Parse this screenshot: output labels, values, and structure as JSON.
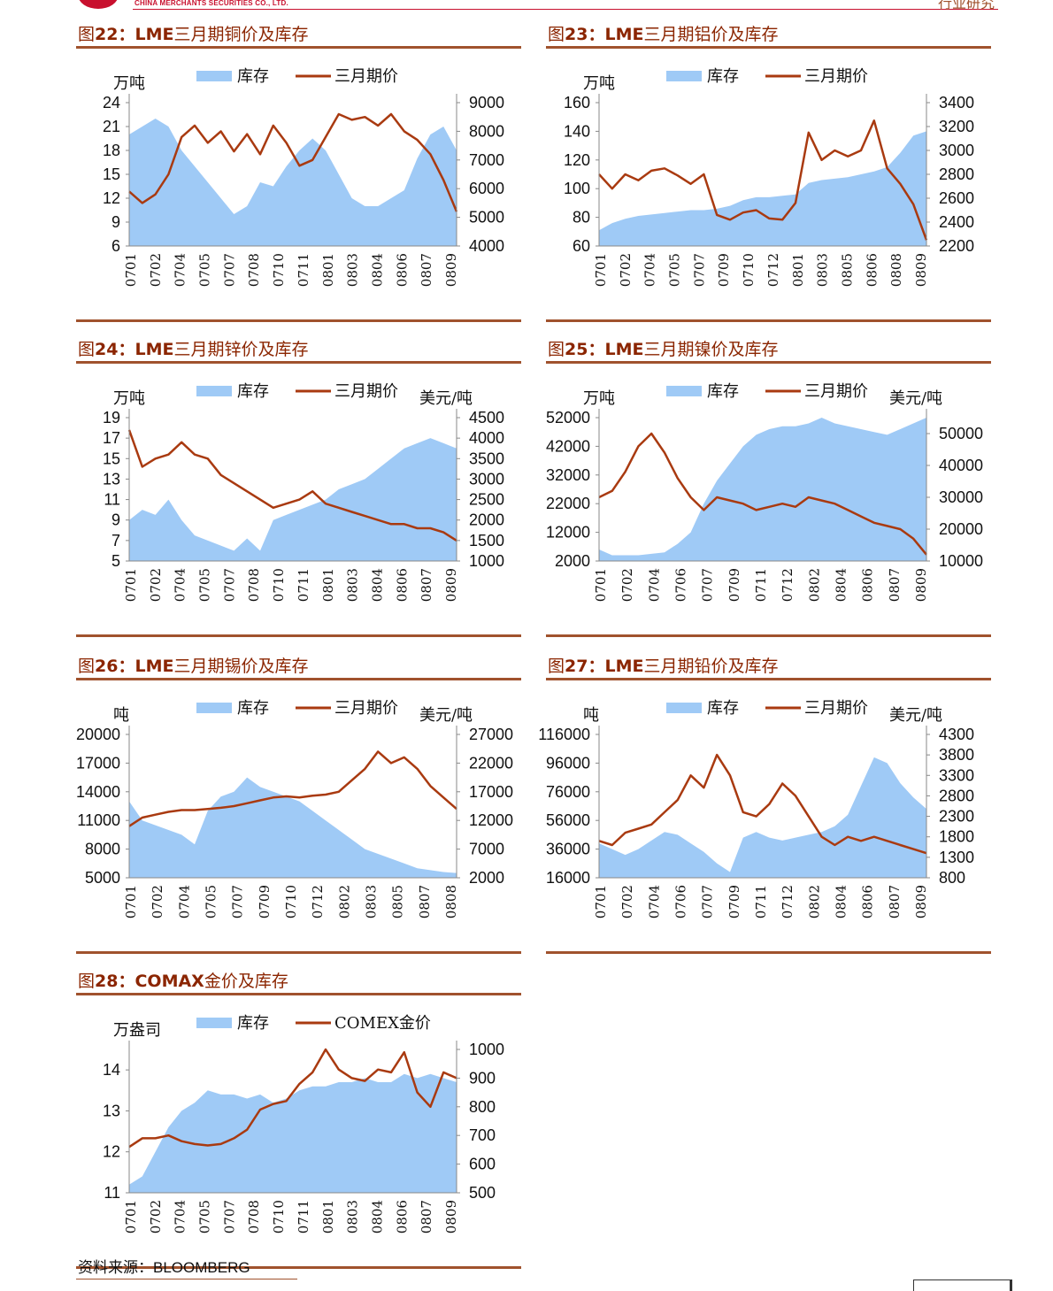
{
  "header": {
    "company": "CHINA MERCHANTS SECURITIES CO., LTD.",
    "section": "行业研究"
  },
  "chart_data": [
    {
      "id": "fig22",
      "type": "area+line",
      "fig_label": "图22：",
      "title_en": "LME",
      "title_cn": "三月期铜价及库存",
      "left_unit": "万吨",
      "right_unit": "",
      "legend": {
        "area": "库存",
        "line": "三月期价"
      },
      "yleft": {
        "min": 6,
        "max": 24,
        "ticks": [
          6,
          9,
          12,
          15,
          18,
          21,
          24
        ]
      },
      "yright": {
        "min": 4000,
        "max": 9000,
        "ticks": [
          4000,
          5000,
          6000,
          7000,
          8000,
          9000
        ]
      },
      "x_ticks": [
        "0701",
        "0702",
        "0704",
        "0705",
        "0707",
        "0708",
        "0710",
        "0711",
        "0801",
        "0803",
        "0804",
        "0806",
        "0807",
        "0809"
      ],
      "series_area": {
        "name": "库存",
        "values": [
          20,
          21,
          22,
          21,
          18,
          16,
          14,
          12,
          10,
          11,
          14,
          13.5,
          16,
          18,
          19.5,
          18,
          15,
          12,
          11,
          11,
          12,
          13,
          17,
          20,
          21,
          18
        ]
      },
      "series_line": {
        "name": "三月期价",
        "values": [
          5900,
          5500,
          5800,
          6500,
          7800,
          8200,
          7600,
          8000,
          7300,
          7900,
          7200,
          8200,
          7600,
          6800,
          7000,
          7800,
          8600,
          8400,
          8500,
          8200,
          8600,
          8000,
          7700,
          7200,
          6300,
          5200
        ]
      },
      "colors": {
        "area": "#9fcaf6",
        "line": "#a93a10"
      }
    },
    {
      "id": "fig23",
      "type": "area+line",
      "fig_label": "图23：",
      "title_en": "LME",
      "title_cn": "三月期铝价及库存",
      "left_unit": "万吨",
      "right_unit": "",
      "legend": {
        "area": "库存",
        "line": "三月期价"
      },
      "yleft": {
        "min": 60,
        "max": 160,
        "ticks": [
          60,
          80,
          100,
          120,
          140,
          160
        ]
      },
      "yright": {
        "min": 2200,
        "max": 3400,
        "ticks": [
          2200,
          2400,
          2600,
          2800,
          3000,
          3200,
          3400
        ]
      },
      "x_ticks": [
        "0701",
        "0702",
        "0704",
        "0705",
        "0707",
        "0709",
        "0710",
        "0712",
        "0801",
        "0803",
        "0805",
        "0806",
        "0808",
        "0809"
      ],
      "series_area": {
        "name": "库存",
        "values": [
          71,
          76,
          79,
          81,
          82,
          83,
          84,
          85,
          85,
          86,
          88,
          92,
          94,
          94,
          95,
          96,
          104,
          106,
          107,
          108,
          110,
          112,
          115,
          125,
          137,
          140
        ]
      },
      "series_line": {
        "name": "三月期价",
        "values": [
          2800,
          2680,
          2800,
          2750,
          2830,
          2850,
          2790,
          2720,
          2800,
          2460,
          2420,
          2480,
          2500,
          2430,
          2420,
          2560,
          3150,
          2920,
          3000,
          2950,
          3000,
          3250,
          2850,
          2720,
          2550,
          2250
        ]
      },
      "colors": {
        "area": "#9fcaf6",
        "line": "#a93a10"
      }
    },
    {
      "id": "fig24",
      "type": "area+line",
      "fig_label": "图24：",
      "title_en": "LME",
      "title_cn": "三月期锌价及库存",
      "left_unit": "万吨",
      "right_unit": "美元/吨",
      "legend": {
        "area": "库存",
        "line": "三月期价"
      },
      "yleft": {
        "min": 5,
        "max": 19,
        "ticks": [
          5,
          7,
          9,
          11,
          13,
          15,
          17,
          19
        ]
      },
      "yright": {
        "min": 1000,
        "max": 4500,
        "ticks": [
          1000,
          1500,
          2000,
          2500,
          3000,
          3500,
          4000,
          4500
        ]
      },
      "x_ticks": [
        "0701",
        "0702",
        "0704",
        "0705",
        "0707",
        "0708",
        "0710",
        "0711",
        "0801",
        "0803",
        "0804",
        "0806",
        "0807",
        "0809"
      ],
      "series_area": {
        "name": "库存",
        "values": [
          9,
          10,
          9.5,
          11,
          9,
          7.5,
          7,
          6.5,
          6,
          7.2,
          6,
          9,
          9.5,
          10,
          10.5,
          11,
          12,
          12.5,
          13,
          14,
          15,
          16,
          16.5,
          17,
          16.5,
          16
        ]
      },
      "series_line": {
        "name": "三月期价",
        "values": [
          4200,
          3300,
          3500,
          3600,
          3900,
          3600,
          3500,
          3100,
          2900,
          2700,
          2500,
          2300,
          2400,
          2500,
          2700,
          2400,
          2300,
          2200,
          2100,
          2000,
          1900,
          1900,
          1800,
          1800,
          1700,
          1500
        ]
      },
      "colors": {
        "area": "#9fcaf6",
        "line": "#a93a10"
      }
    },
    {
      "id": "fig25",
      "type": "area+line",
      "fig_label": "图25：",
      "title_en": "LME",
      "title_cn": "三月期镍价及库存",
      "left_unit": "万吨",
      "right_unit": "美元/吨",
      "legend": {
        "area": "库存",
        "line": "三月期价"
      },
      "yleft": {
        "min": 2000,
        "max": 52000,
        "ticks": [
          2000,
          12000,
          22000,
          32000,
          42000,
          52000
        ]
      },
      "yright": {
        "min": 10000,
        "max": 55000,
        "ticks": [
          10000,
          20000,
          30000,
          40000,
          50000
        ]
      },
      "x_ticks": [
        "0701",
        "0702",
        "0704",
        "0706",
        "0707",
        "0709",
        "0711",
        "0712",
        "0802",
        "0804",
        "0806",
        "0807",
        "0809"
      ],
      "series_area": {
        "name": "库存",
        "values": [
          6000,
          4000,
          4000,
          4000,
          4500,
          5000,
          8000,
          12000,
          22000,
          30000,
          36000,
          42000,
          46000,
          48000,
          49000,
          49000,
          50000,
          52000,
          50000,
          49000,
          48000,
          47000,
          46000,
          48000,
          50000,
          54000
        ]
      },
      "series_line": {
        "name": "三月期价",
        "values": [
          30000,
          32000,
          38000,
          46000,
          50000,
          44000,
          36000,
          30000,
          26000,
          30000,
          29000,
          28000,
          26000,
          27000,
          28000,
          27000,
          30000,
          29000,
          28000,
          26000,
          24000,
          22000,
          21000,
          20000,
          17000,
          12000
        ]
      },
      "colors": {
        "area": "#9fcaf6",
        "line": "#a93a10"
      }
    },
    {
      "id": "fig26",
      "type": "area+line",
      "fig_label": "图26：",
      "title_en": "LME",
      "title_cn": "三月期锡价及库存",
      "left_unit": "吨",
      "right_unit": "美元/吨",
      "legend": {
        "area": "库存",
        "line": "三月期价"
      },
      "yleft": {
        "min": 5000,
        "max": 20000,
        "ticks": [
          5000,
          8000,
          11000,
          14000,
          17000,
          20000
        ]
      },
      "yright": {
        "min": 2000,
        "max": 27000,
        "ticks": [
          2000,
          7000,
          12000,
          17000,
          22000,
          27000
        ]
      },
      "x_ticks": [
        "0701",
        "0702",
        "0704",
        "0705",
        "0707",
        "0709",
        "0710",
        "0712",
        "0802",
        "0803",
        "0805",
        "0807",
        "0808"
      ],
      "series_area": {
        "name": "库存",
        "values": [
          13000,
          11000,
          10500,
          10000,
          9500,
          8500,
          12000,
          13500,
          14000,
          15500,
          14500,
          14000,
          13500,
          13000,
          12000,
          11000,
          10000,
          9000,
          8000,
          7500,
          7000,
          6500,
          6000,
          5800,
          5600,
          5500
        ]
      },
      "series_line": {
        "name": "三月期价",
        "values": [
          11000,
          12500,
          13000,
          13500,
          13800,
          13800,
          14000,
          14200,
          14500,
          15000,
          15500,
          16000,
          16200,
          16000,
          16300,
          16500,
          17000,
          19000,
          21000,
          24000,
          22000,
          23000,
          21000,
          18000,
          16000,
          14000
        ]
      },
      "colors": {
        "area": "#9fcaf6",
        "line": "#a93a10"
      }
    },
    {
      "id": "fig27",
      "type": "area+line",
      "fig_label": "图27：",
      "title_en": "LME",
      "title_cn": "三月期铅价及库存",
      "left_unit": "吨",
      "right_unit": "美元/吨",
      "legend": {
        "area": "库存",
        "line": "三月期价"
      },
      "yleft": {
        "min": 16000,
        "max": 116000,
        "ticks": [
          16000,
          36000,
          56000,
          76000,
          96000,
          116000
        ]
      },
      "yright": {
        "min": 800,
        "max": 4300,
        "ticks": [
          800,
          1300,
          1800,
          2300,
          2800,
          3300,
          3800,
          4300
        ]
      },
      "x_ticks": [
        "0701",
        "0702",
        "0704",
        "0706",
        "0707",
        "0709",
        "0711",
        "0712",
        "0802",
        "0804",
        "0806",
        "0807",
        "0809"
      ],
      "series_area": {
        "name": "库存",
        "values": [
          40000,
          36000,
          32000,
          36000,
          42000,
          48000,
          46000,
          40000,
          34000,
          26000,
          20000,
          44000,
          48000,
          44000,
          42000,
          44000,
          46000,
          48000,
          52000,
          60000,
          80000,
          100000,
          96000,
          82000,
          72000,
          64000
        ]
      },
      "series_line": {
        "name": "三月期价",
        "values": [
          1700,
          1600,
          1900,
          2000,
          2100,
          2400,
          2700,
          3300,
          3000,
          3800,
          3300,
          2400,
          2300,
          2600,
          3100,
          2800,
          2300,
          1800,
          1600,
          1800,
          1700,
          1800,
          1700,
          1600,
          1500,
          1400
        ]
      },
      "colors": {
        "area": "#9fcaf6",
        "line": "#a93a10"
      }
    },
    {
      "id": "fig28",
      "type": "area+line",
      "fig_label": "图28：",
      "title_en": "COMAX",
      "title_cn": "金价及库存",
      "left_unit": "万盎司",
      "right_unit": "",
      "legend": {
        "area": "库存",
        "line": "COMEX金价"
      },
      "yleft": {
        "min": 11,
        "max": 14.5,
        "ticks": [
          11,
          12,
          13,
          14
        ]
      },
      "yright": {
        "min": 500,
        "max": 1000,
        "ticks": [
          500,
          600,
          700,
          800,
          900,
          1000
        ]
      },
      "x_ticks": [
        "0701",
        "0702",
        "0704",
        "0705",
        "0707",
        "0708",
        "0710",
        "0711",
        "0801",
        "0803",
        "0804",
        "0806",
        "0807",
        "0809"
      ],
      "series_area": {
        "name": "库存",
        "values": [
          11.2,
          11.4,
          12,
          12.6,
          13,
          13.2,
          13.5,
          13.4,
          13.4,
          13.3,
          13.4,
          13.2,
          13.3,
          13.5,
          13.6,
          13.6,
          13.7,
          13.7,
          13.8,
          13.7,
          13.7,
          13.9,
          13.8,
          13.9,
          13.8,
          13.7
        ]
      },
      "series_line": {
        "name": "COMEX金价",
        "values": [
          660,
          690,
          690,
          700,
          680,
          670,
          665,
          670,
          690,
          720,
          790,
          810,
          820,
          880,
          920,
          1000,
          930,
          900,
          890,
          930,
          920,
          990,
          850,
          800,
          920,
          900
        ]
      },
      "colors": {
        "area": "#9fcaf6",
        "line": "#a93a10"
      }
    }
  ],
  "footer": {
    "source_label": "资料来源：",
    "source_value": "BLOOMBERG"
  }
}
